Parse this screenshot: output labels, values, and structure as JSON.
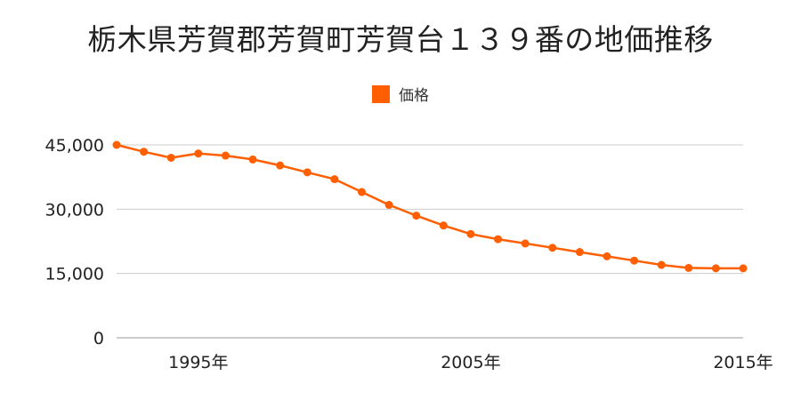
{
  "title": "栃木県芳賀郡芳賀町芳賀台１３９番の地価推移",
  "legend": {
    "label": "価格"
  },
  "colors": {
    "series": "#ff5f00",
    "grid": "#cccccc",
    "axis": "#999999"
  },
  "chart_data": {
    "type": "line",
    "title": "栃木県芳賀郡芳賀町芳賀台１３９番の地価推移",
    "legend_position": "top",
    "grid": true,
    "xlabel": "",
    "ylabel": "",
    "ylim": [
      0,
      45000
    ],
    "yticks": [
      {
        "value": 0,
        "label": "0"
      },
      {
        "value": 15000,
        "label": "15,000"
      },
      {
        "value": 30000,
        "label": "30,000"
      },
      {
        "value": 45000,
        "label": "45,000"
      }
    ],
    "xlim": [
      1992,
      2015
    ],
    "xticks": [
      {
        "value": 1995,
        "label": "1995年"
      },
      {
        "value": 2005,
        "label": "2005年"
      },
      {
        "value": 2015,
        "label": "2015年"
      }
    ],
    "series": [
      {
        "name": "価格",
        "x": [
          1992,
          1993,
          1994,
          1995,
          1996,
          1997,
          1998,
          1999,
          2000,
          2001,
          2002,
          2003,
          2004,
          2005,
          2006,
          2007,
          2008,
          2009,
          2010,
          2011,
          2012,
          2013,
          2014,
          2015
        ],
        "values": [
          45000,
          43400,
          42000,
          43000,
          42500,
          41600,
          40200,
          38600,
          37000,
          34000,
          31000,
          28500,
          26200,
          24200,
          23000,
          22000,
          21000,
          20000,
          19000,
          18000,
          17000,
          16300,
          16200,
          16200
        ]
      }
    ]
  }
}
